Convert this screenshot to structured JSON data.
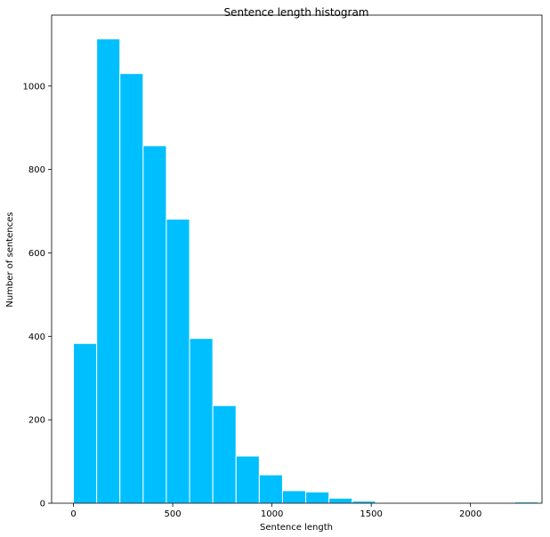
{
  "chart_data": {
    "type": "bar",
    "title": "Sentence length histogram",
    "xlabel": "Sentence length",
    "ylabel": "Number of sentences",
    "bar_color": "#00bfff",
    "edge_color": "#ffffff",
    "xlim": [
      -110,
      2360
    ],
    "ylim": [
      0,
      1170
    ],
    "xticks": [
      0,
      500,
      1000,
      1500,
      2000
    ],
    "yticks": [
      0,
      200,
      400,
      600,
      800,
      1000
    ],
    "bin_width": 117,
    "bins": [
      {
        "start": 0,
        "value": 383
      },
      {
        "start": 117,
        "value": 1113
      },
      {
        "start": 234,
        "value": 1030
      },
      {
        "start": 351,
        "value": 857
      },
      {
        "start": 468,
        "value": 681
      },
      {
        "start": 585,
        "value": 395
      },
      {
        "start": 702,
        "value": 234
      },
      {
        "start": 819,
        "value": 113
      },
      {
        "start": 936,
        "value": 68
      },
      {
        "start": 1053,
        "value": 30
      },
      {
        "start": 1170,
        "value": 27
      },
      {
        "start": 1287,
        "value": 12
      },
      {
        "start": 1404,
        "value": 5
      },
      {
        "start": 1521,
        "value": 1
      },
      {
        "start": 1638,
        "value": 0
      },
      {
        "start": 1755,
        "value": 0
      },
      {
        "start": 1872,
        "value": 0
      },
      {
        "start": 1989,
        "value": 1
      },
      {
        "start": 2106,
        "value": 0
      },
      {
        "start": 2223,
        "value": 3
      }
    ],
    "grid": false,
    "legend": "none"
  }
}
